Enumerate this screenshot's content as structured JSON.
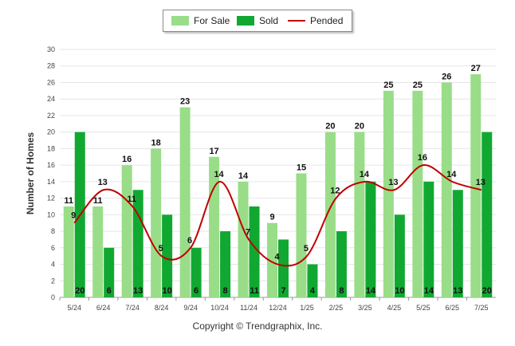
{
  "chart_data": {
    "type": "bar",
    "ylabel": "Number of Homes",
    "xlabel": "",
    "ylim": [
      0,
      30
    ],
    "ytick_step": 2,
    "categories": [
      "5/24",
      "6/24",
      "7/24",
      "8/24",
      "9/24",
      "10/24",
      "11/24",
      "12/24",
      "1/25",
      "2/25",
      "3/25",
      "4/25",
      "5/25",
      "6/25",
      "7/25"
    ],
    "series": [
      {
        "name": "For Sale",
        "type": "bar",
        "color": "#99dd88",
        "values": [
          11,
          11,
          16,
          18,
          23,
          17,
          14,
          9,
          15,
          20,
          20,
          25,
          25,
          26,
          27
        ]
      },
      {
        "name": "Sold",
        "type": "bar",
        "color": "#11a832",
        "values": [
          20,
          6,
          13,
          10,
          6,
          8,
          11,
          7,
          4,
          8,
          14,
          10,
          14,
          13,
          20
        ]
      },
      {
        "name": "Pended",
        "type": "line",
        "color": "#c00000",
        "values": [
          9,
          13,
          11,
          5,
          6,
          14,
          7,
          4,
          5,
          12,
          14,
          13,
          16,
          14,
          13
        ]
      }
    ],
    "grid": true,
    "legend_position": "top-center"
  },
  "legend": {
    "for_sale": "For Sale",
    "sold": "Sold",
    "pended": "Pended"
  },
  "footer": {
    "copyright": "Copyright © Trendgraphix, Inc."
  }
}
